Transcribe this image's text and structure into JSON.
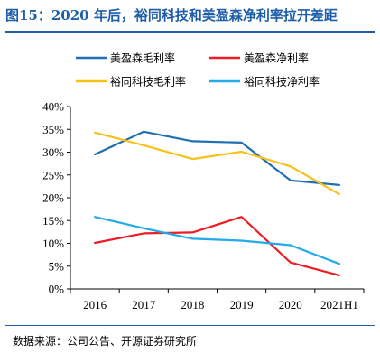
{
  "figure": {
    "title": "图15：2020 年后，裕同科技和美盈森净利率拉开差距",
    "source": "数据来源：公司公告、开源证券研究所"
  },
  "chart_data": {
    "type": "line",
    "categories": [
      "2016",
      "2017",
      "2018",
      "2019",
      "2020",
      "2021H1"
    ],
    "ylim": [
      0,
      40
    ],
    "yticks": [
      "0%",
      "5%",
      "10%",
      "15%",
      "20%",
      "25%",
      "30%",
      "35%",
      "40%"
    ],
    "ytick_values": [
      0,
      5,
      10,
      15,
      20,
      25,
      30,
      35,
      40
    ],
    "grid": false,
    "legend_position": "top",
    "series": [
      {
        "name": "美盈森毛利率",
        "color": "#1f6fb4",
        "values": [
          29.5,
          34.5,
          32.4,
          32.1,
          23.8,
          22.8
        ]
      },
      {
        "name": "美盈森净利率",
        "color": "#ee1c24",
        "values": [
          10.1,
          12.2,
          12.4,
          15.8,
          5.8,
          3.0
        ]
      },
      {
        "name": "裕同科技毛利率",
        "color": "#f6c21a",
        "values": [
          34.3,
          31.5,
          28.5,
          30.1,
          26.9,
          20.8
        ]
      },
      {
        "name": "裕同科技净利率",
        "color": "#22aaea",
        "values": [
          15.8,
          13.3,
          11.0,
          10.6,
          9.6,
          5.5
        ]
      }
    ]
  }
}
